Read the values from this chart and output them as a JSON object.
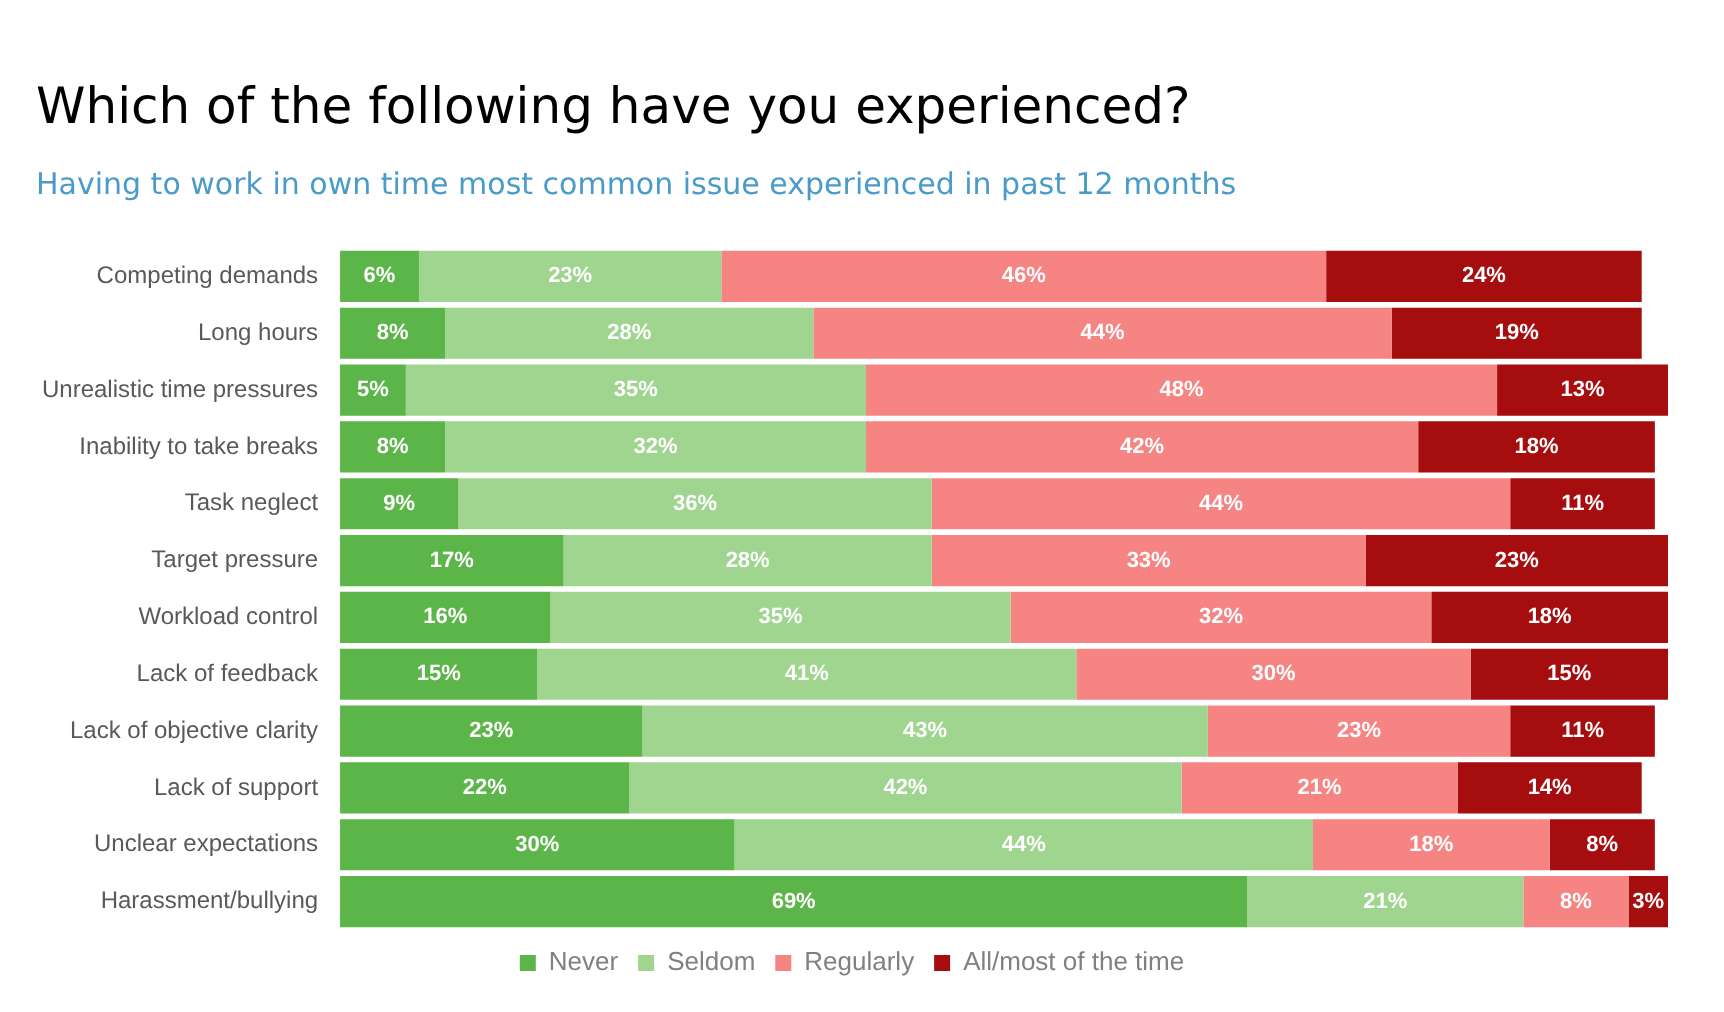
{
  "chart_data": {
    "type": "bar",
    "orientation": "horizontal",
    "stacked": true,
    "title": "Which of the following have you experienced?",
    "subtitle": "Having to work in own time most common issue experienced in past 12 months",
    "categories": [
      "Competing demands",
      "Long hours",
      "Unrealistic time pressures",
      "Inability to take breaks",
      "Task neglect",
      "Target pressure",
      "Workload control",
      "Lack of feedback",
      "Lack of objective clarity",
      "Lack of support",
      "Unclear expectations",
      "Harassment/bullying"
    ],
    "legend": "bottom",
    "tick_labels": "y",
    "series": [
      {
        "name": "Never",
        "color": "#5bb548",
        "values": [
          6,
          8,
          5,
          8,
          9,
          17,
          16,
          15,
          23,
          22,
          30,
          69
        ],
        "value_labels": [
          "6%",
          "8%",
          "5%",
          "8%",
          "9%",
          "17%",
          "16%",
          "15%",
          "23%",
          "22%",
          "30%",
          "69%"
        ]
      },
      {
        "name": "Seldom",
        "color": "#9fd58f",
        "values": [
          23,
          28,
          35,
          32,
          36,
          28,
          35,
          41,
          43,
          42,
          44,
          21
        ],
        "value_labels": [
          "23%",
          "28%",
          "35%",
          "32%",
          "36%",
          "28%",
          "35%",
          "41%",
          "43%",
          "42%",
          "44%",
          "21%"
        ]
      },
      {
        "name": "Regularly",
        "color": "#f58482",
        "values": [
          46,
          44,
          48,
          42,
          44,
          33,
          32,
          30,
          23,
          21,
          18,
          8
        ],
        "value_labels": [
          "46%",
          "44%",
          "48%",
          "42%",
          "44%",
          "33%",
          "32%",
          "30%",
          "23%",
          "21%",
          "18%",
          "8%"
        ]
      },
      {
        "name": "All/most of the time",
        "color": "#a50d0f",
        "values": [
          24,
          19,
          13,
          18,
          11,
          23,
          18,
          15,
          11,
          14,
          8,
          3
        ],
        "value_labels": [
          "24%",
          "19%",
          "13%",
          "18%",
          "11%",
          "23%",
          "18%",
          "15%",
          "11%",
          "14%",
          "8%",
          "3%"
        ]
      }
    ]
  }
}
